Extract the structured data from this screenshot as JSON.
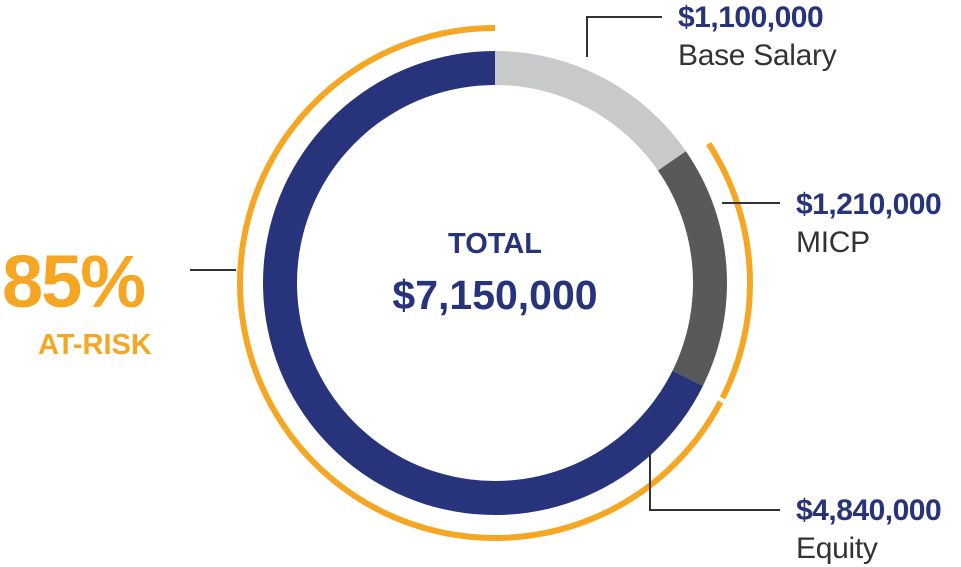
{
  "colors": {
    "navy": "#27337a",
    "light_gray": "#c8c9cb",
    "dark_gray": "#58595b",
    "orange": "#f5a623",
    "leader": "#333333"
  },
  "chart_data": {
    "type": "pie",
    "variant": "donut",
    "center_title": "TOTAL",
    "center_value": "$7,150,000",
    "slices": [
      {
        "name": "Base Salary",
        "value": 1100000,
        "label_value": "$1,100,000",
        "color": "#c8c9cb"
      },
      {
        "name": "MICP",
        "value": 1210000,
        "label_value": "$1,210,000",
        "color": "#58595b"
      },
      {
        "name": "Equity",
        "value": 4840000,
        "label_value": "$4,840,000",
        "color": "#27337a"
      }
    ],
    "at_risk": {
      "percent": "85%",
      "label": "AT-RISK",
      "covers": [
        "MICP",
        "Equity"
      ]
    }
  }
}
